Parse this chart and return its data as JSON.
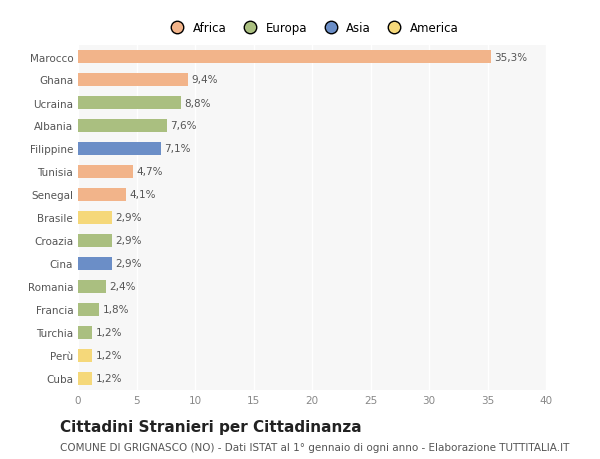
{
  "categories": [
    "Marocco",
    "Ghana",
    "Ucraina",
    "Albania",
    "Filippine",
    "Tunisia",
    "Senegal",
    "Brasile",
    "Croazia",
    "Cina",
    "Romania",
    "Francia",
    "Turchia",
    "Perù",
    "Cuba"
  ],
  "values": [
    35.3,
    9.4,
    8.8,
    7.6,
    7.1,
    4.7,
    4.1,
    2.9,
    2.9,
    2.9,
    2.4,
    1.8,
    1.2,
    1.2,
    1.2
  ],
  "labels": [
    "35,3%",
    "9,4%",
    "8,8%",
    "7,6%",
    "7,1%",
    "4,7%",
    "4,1%",
    "2,9%",
    "2,9%",
    "2,9%",
    "2,4%",
    "1,8%",
    "1,2%",
    "1,2%",
    "1,2%"
  ],
  "colors": [
    "#F2B48A",
    "#F2B48A",
    "#AABF80",
    "#AABF80",
    "#6B8EC7",
    "#F2B48A",
    "#F2B48A",
    "#F5D87A",
    "#AABF80",
    "#6B8EC7",
    "#AABF80",
    "#AABF80",
    "#AABF80",
    "#F5D87A",
    "#F5D87A"
  ],
  "legend_labels": [
    "Africa",
    "Europa",
    "Asia",
    "America"
  ],
  "legend_colors": [
    "#F2B48A",
    "#AABF80",
    "#6B8EC7",
    "#F5D87A"
  ],
  "xlim": [
    0,
    40
  ],
  "xticks": [
    0,
    5,
    10,
    15,
    20,
    25,
    30,
    35,
    40
  ],
  "title": "Cittadini Stranieri per Cittadinanza",
  "subtitle": "COMUNE DI GRIGNASCO (NO) - Dati ISTAT al 1° gennaio di ogni anno - Elaborazione TUTTITALIA.IT",
  "bg_color": "#ffffff",
  "plot_bg_color": "#f7f7f7",
  "bar_height": 0.55,
  "title_fontsize": 11,
  "subtitle_fontsize": 7.5,
  "label_fontsize": 7.5,
  "tick_fontsize": 7.5,
  "legend_fontsize": 8.5
}
